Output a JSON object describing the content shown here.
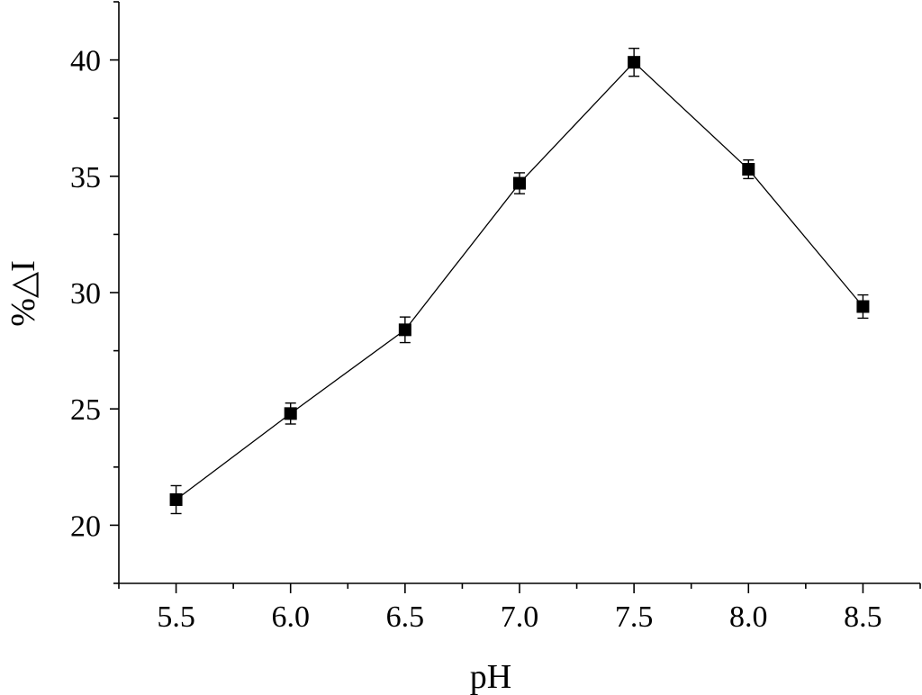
{
  "chart_data": {
    "type": "line",
    "title": "",
    "xlabel": "pH",
    "ylabel": "%△I",
    "xlim": [
      5.25,
      8.75
    ],
    "ylim": [
      17.5,
      42.5
    ],
    "x_ticks": [
      5.5,
      6.0,
      6.5,
      7.0,
      7.5,
      8.0,
      8.5
    ],
    "x_tick_labels": [
      "5.5",
      "6.0",
      "6.5",
      "7.0",
      "7.5",
      "8.0",
      "8.5"
    ],
    "y_ticks": [
      20,
      25,
      30,
      35,
      40
    ],
    "y_tick_labels": [
      "20",
      "25",
      "30",
      "35",
      "40"
    ],
    "grid": false,
    "legend": "none",
    "series": [
      {
        "x": [
          5.5,
          6.0,
          6.5,
          7.0,
          7.5,
          8.0,
          8.5
        ],
        "y": [
          21.1,
          24.8,
          28.4,
          34.7,
          39.9,
          35.3,
          29.4
        ],
        "error": [
          0.6,
          0.45,
          0.55,
          0.45,
          0.6,
          0.4,
          0.5
        ],
        "marker": "square",
        "color": "#000000"
      }
    ]
  }
}
